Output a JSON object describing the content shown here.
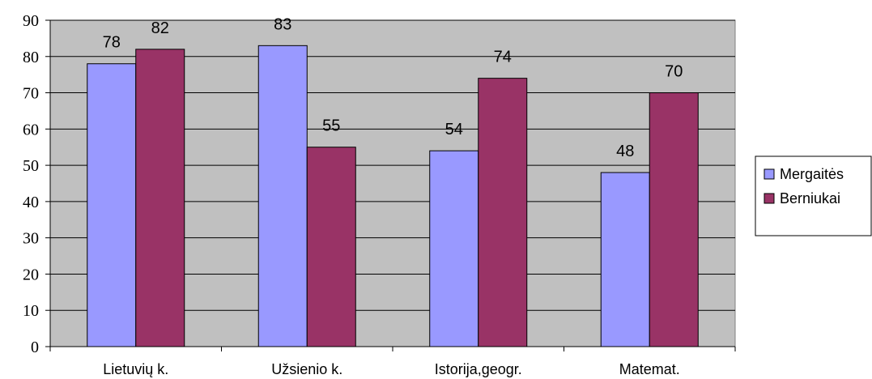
{
  "chart_data": {
    "type": "bar",
    "categories": [
      "Lietuvių k.",
      "Užsienio k.",
      "Istorija,geogr.",
      "Matemat."
    ],
    "series": [
      {
        "name": "Mergaitės",
        "values": [
          78,
          83,
          54,
          48
        ],
        "color": "#9999ff"
      },
      {
        "name": "Berniukai",
        "values": [
          82,
          55,
          74,
          70
        ],
        "color": "#993366"
      }
    ],
    "ylim": [
      0,
      90
    ],
    "yticks": [
      0,
      10,
      20,
      30,
      40,
      50,
      60,
      70,
      80,
      90
    ],
    "grid": true,
    "legend": "right",
    "plot_background": "#c0c0c0"
  }
}
